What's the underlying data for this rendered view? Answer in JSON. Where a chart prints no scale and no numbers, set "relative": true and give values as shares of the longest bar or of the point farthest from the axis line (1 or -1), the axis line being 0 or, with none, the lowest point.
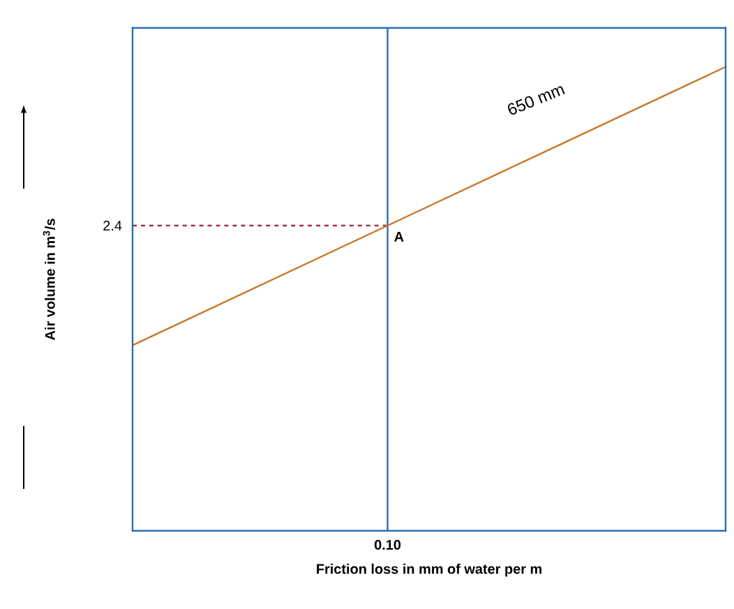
{
  "chart_data": {
    "type": "line",
    "relative": true,
    "xlabel": "Friction loss in mm of water per m",
    "ylabel": "Air volume in m$^{3}$/s",
    "categories": [
      null,
      null
    ],
    "series": [
      {
        "color": "#c8782a",
        "values": [
          0.4,
          1
        ]
      }
    ],
    "annotations": [
      "650 mm",
      "A",
      "2.4",
      "0.10"
    ]
  }
}
